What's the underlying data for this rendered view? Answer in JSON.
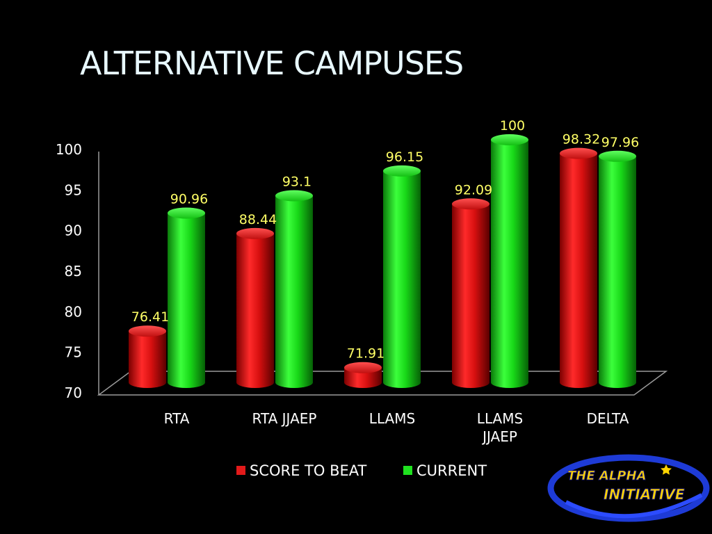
{
  "title": "ALTERNATIVE CAMPUSES",
  "logo": {
    "line1": "THE ALPHA",
    "line2": "INITIATIVE"
  },
  "colors": {
    "score_to_beat": "#e21a1a",
    "current": "#1fe11f",
    "label": "#ffff66",
    "title": "#e8f8ff"
  },
  "chart_data": {
    "type": "bar",
    "categories": [
      [
        "RTA"
      ],
      [
        "RTA JJAEP"
      ],
      [
        "LLAMS"
      ],
      [
        "LLAMS",
        "JJAEP"
      ],
      [
        "DELTA"
      ]
    ],
    "series": [
      {
        "name": "SCORE TO BEAT",
        "values": [
          76.41,
          88.44,
          71.91,
          92.09,
          98.32
        ],
        "labels": [
          "76.41",
          "88.44",
          "71.91",
          "92.09",
          "98.32"
        ]
      },
      {
        "name": "CURRENT",
        "values": [
          90.96,
          93.1,
          96.15,
          100,
          97.96
        ],
        "labels": [
          "90.96",
          "93.1",
          "96.15",
          "100",
          "97.96"
        ]
      }
    ],
    "yticks": [
      "70",
      "75",
      "80",
      "85",
      "90",
      "95",
      "100"
    ],
    "ylim": [
      70,
      100
    ],
    "legend": "bottom",
    "style": "3d-cylinder"
  }
}
